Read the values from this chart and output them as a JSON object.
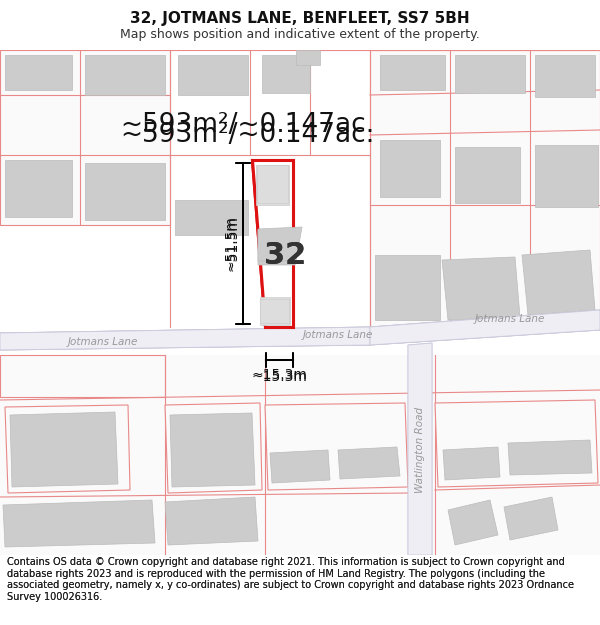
{
  "title": "32, JOTMANS LANE, BENFLEET, SS7 5BH",
  "subtitle": "Map shows position and indicative extent of the property.",
  "area_text": "~593m²/~0.147ac.",
  "dim_width": "~15.3m",
  "dim_height": "~51.5m",
  "label_number": "32",
  "road_label_left": "Jotmans Lane",
  "road_label_center": "Jotmans Lane",
  "road_label_right": "Jotmans Lane",
  "road_label_vertical": "Watlington Road",
  "footer": "Contains OS data © Crown copyright and database right 2021. This information is subject to Crown copyright and database rights 2023 and is reproduced with the permission of HM Land Registry. The polygons (including the associated geometry, namely x, y co-ordinates) are subject to Crown copyright and database rights 2023 Ordnance Survey 100026316.",
  "title_fontsize": 11,
  "subtitle_fontsize": 9,
  "footer_fontsize": 7,
  "area_fontsize": 19,
  "label_fontsize": 22,
  "dim_fontsize": 10,
  "road_fontsize": 7.5,
  "bg_color": "#ffffff",
  "map_bg": "#ffffff",
  "plot_outline_color": "#dd1111",
  "plot_fill": "#ffffff",
  "boundary_color": "#e88888",
  "building_fill": "#cccccc",
  "building_edge": "#bbbbbb",
  "road_fill": "#e8e8f0",
  "road_edge": "#cccccc",
  "road_text_color": "#999999",
  "dim_color": "#111111",
  "text_color": "#222222"
}
